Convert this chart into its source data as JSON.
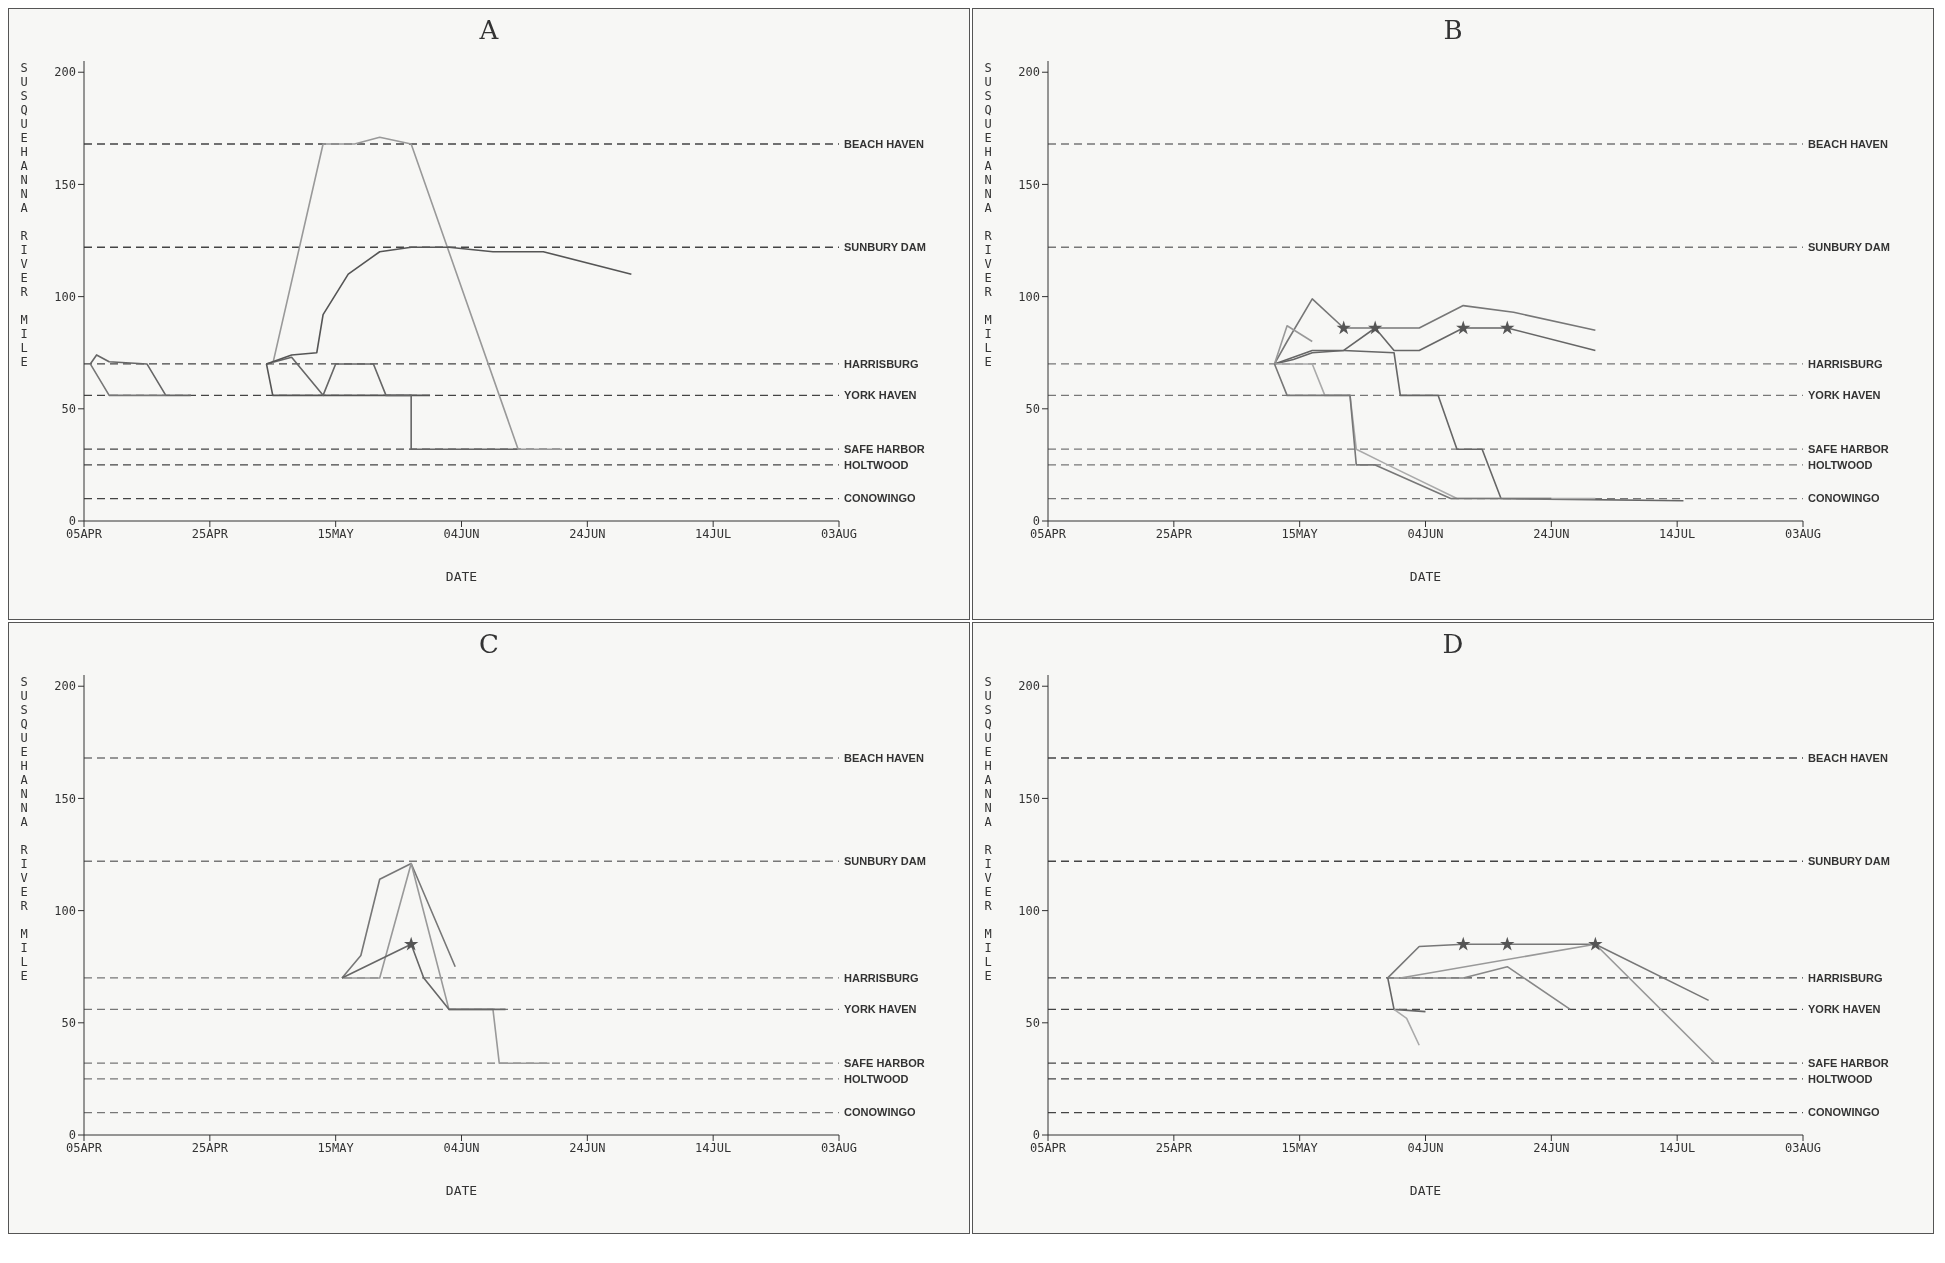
{
  "chart_data": [
    {
      "type": "line",
      "title": "A",
      "xlabel": "DATE",
      "ylabel": "SUSQUEHANNA RIVER MILE",
      "xlim": [
        "--04-05",
        "--08-03"
      ],
      "xticks": [
        {
          "value": "--04-05",
          "label": "05APR"
        },
        {
          "value": "--04-25",
          "label": "25APR"
        },
        {
          "value": "--05-15",
          "label": "15MAY"
        },
        {
          "value": "--06-04",
          "label": "04JUN"
        },
        {
          "value": "--06-24",
          "label": "24JUN"
        },
        {
          "value": "--07-14",
          "label": "14JUL"
        },
        {
          "value": "--08-03",
          "label": "03AUG"
        }
      ],
      "ylim": [
        0,
        205
      ],
      "yticks": [
        0,
        50,
        100,
        150,
        200
      ],
      "marker": "none",
      "line_style": "solid",
      "ref_lines": [
        {
          "axis": "y",
          "value": 168,
          "label": "BEACH HAVEN",
          "color": "#444444",
          "line_style": "dashed"
        },
        {
          "axis": "y",
          "value": 122,
          "label": "SUNBURY DAM",
          "color": "#444444",
          "line_style": "dashed"
        },
        {
          "axis": "y",
          "value": 70,
          "label": "HARRISBURG",
          "color": "#444444",
          "line_style": "dashed"
        },
        {
          "axis": "y",
          "value": 56,
          "label": "YORK HAVEN",
          "color": "#444444",
          "line_style": "dashed"
        },
        {
          "axis": "y",
          "value": 32,
          "label": "SAFE HARBOR",
          "color": "#444444",
          "line_style": "dashed"
        },
        {
          "axis": "y",
          "value": 25,
          "label": "HOLTWOOD",
          "color": "#444444",
          "line_style": "dashed"
        },
        {
          "axis": "y",
          "value": 10,
          "label": "CONOWINGO",
          "color": "#444444",
          "line_style": "dashed"
        }
      ],
      "series": [
        {
          "color": "#666666",
          "x": [
            "--04-06",
            "--04-07",
            "--04-09",
            "--04-15",
            "--04-18",
            "--04-22"
          ],
          "values": [
            70,
            74,
            71,
            70,
            56,
            56
          ]
        },
        {
          "color": "#777777",
          "x": [
            "--04-06",
            "--04-09",
            "--04-18"
          ],
          "values": [
            70,
            56,
            56
          ]
        },
        {
          "color": "#555555",
          "x": [
            "--05-04",
            "--05-05",
            "--05-30"
          ],
          "values": [
            70,
            56,
            56
          ]
        },
        {
          "color": "#666666",
          "x": [
            "--05-04",
            "--05-08",
            "--05-13",
            "--05-15",
            "--05-21",
            "--05-23",
            "--05-27",
            "--05-27",
            "--06-13"
          ],
          "values": [
            70,
            73,
            56,
            70,
            70,
            56,
            56,
            32,
            32
          ]
        },
        {
          "color": "#999999",
          "x": [
            "--05-05",
            "--05-13",
            "--05-18",
            "--05-22",
            "--05-27",
            "--06-13",
            "--06-20"
          ],
          "values": [
            70,
            168,
            168,
            171,
            168,
            32,
            32
          ]
        },
        {
          "color": "#555555",
          "x": [
            "--05-04",
            "--05-08",
            "--05-12",
            "--05-13",
            "--05-17",
            "--05-22",
            "--05-27",
            "--06-02",
            "--06-09",
            "--06-17",
            "--07-01"
          ],
          "values": [
            70,
            74,
            75,
            92,
            110,
            120,
            122,
            122,
            120,
            120,
            110
          ]
        }
      ]
    },
    {
      "type": "line",
      "title": "B",
      "xlabel": "DATE",
      "ylabel": "SUSQUEHANNA RIVER MILE",
      "xlim": [
        "--04-05",
        "--08-03"
      ],
      "xticks": [
        {
          "value": "--04-05",
          "label": "05APR"
        },
        {
          "value": "--04-25",
          "label": "25APR"
        },
        {
          "value": "--05-15",
          "label": "15MAY"
        },
        {
          "value": "--06-04",
          "label": "04JUN"
        },
        {
          "value": "--06-24",
          "label": "24JUN"
        },
        {
          "value": "--07-14",
          "label": "14JUL"
        },
        {
          "value": "--08-03",
          "label": "03AUG"
        }
      ],
      "ylim": [
        0,
        205
      ],
      "yticks": [
        0,
        50,
        100,
        150,
        200
      ],
      "marker": "none",
      "line_style": "solid",
      "ref_lines": [
        {
          "axis": "y",
          "value": 168,
          "label": "BEACH HAVEN",
          "color": "#777777",
          "line_style": "dashed"
        },
        {
          "axis": "y",
          "value": 122,
          "label": "SUNBURY DAM",
          "color": "#777777",
          "line_style": "dashed"
        },
        {
          "axis": "y",
          "value": 70,
          "label": "HARRISBURG",
          "color": "#777777",
          "line_style": "dashed"
        },
        {
          "axis": "y",
          "value": 56,
          "label": "YORK HAVEN",
          "color": "#777777",
          "line_style": "dashed"
        },
        {
          "axis": "y",
          "value": 32,
          "label": "SAFE HARBOR",
          "color": "#777777",
          "line_style": "dashed"
        },
        {
          "axis": "y",
          "value": 25,
          "label": "HOLTWOOD",
          "color": "#777777",
          "line_style": "dashed"
        },
        {
          "axis": "y",
          "value": 10,
          "label": "CONOWINGO",
          "color": "#777777",
          "line_style": "dashed"
        }
      ],
      "series": [
        {
          "color": "#777777",
          "x": [
            "--05-11",
            "--05-13",
            "--05-17",
            "--05-22",
            "--05-27",
            "--06-03",
            "--06-10",
            "--06-18",
            "--07-01"
          ],
          "values": [
            70,
            80,
            99,
            86,
            86,
            86,
            96,
            93,
            85
          ]
        },
        {
          "color": "#999999",
          "x": [
            "--05-11",
            "--05-13",
            "--05-17"
          ],
          "values": [
            70,
            87,
            80
          ]
        },
        {
          "color": "#666666",
          "x": [
            "--05-11",
            "--05-14",
            "--05-17",
            "--05-22",
            "--05-27",
            "--05-30",
            "--06-03",
            "--06-10",
            "--06-17",
            "--07-01"
          ],
          "values": [
            70,
            72,
            75,
            76,
            86,
            76,
            76,
            86,
            86,
            76
          ]
        },
        {
          "color": "#666666",
          "x": [
            "--05-11",
            "--05-17",
            "--05-22",
            "--05-30",
            "--05-31",
            "--06-06",
            "--06-09",
            "--06-13",
            "--06-16",
            "--07-15"
          ],
          "values": [
            70,
            76,
            76,
            75,
            56,
            56,
            32,
            32,
            10,
            9
          ]
        },
        {
          "color": "#aaaaaa",
          "x": [
            "--05-11",
            "--05-17",
            "--05-19",
            "--05-23",
            "--05-24",
            "--05-29",
            "--06-09",
            "--07-01"
          ],
          "values": [
            70,
            70,
            56,
            56,
            32,
            25,
            10,
            10
          ]
        },
        {
          "color": "#777777",
          "x": [
            "--05-11",
            "--05-13",
            "--05-23",
            "--05-24",
            "--05-27",
            "--06-08",
            "--06-24"
          ],
          "values": [
            70,
            56,
            56,
            25,
            25,
            10,
            10
          ]
        },
        {
          "type": "scatter",
          "marker": "star",
          "color": "#555555",
          "x": [
            "--05-22",
            "--05-27",
            "--06-10",
            "--06-17"
          ],
          "values": [
            86,
            86,
            86,
            86
          ]
        }
      ]
    },
    {
      "type": "line",
      "title": "C",
      "xlabel": "DATE",
      "ylabel": "SUSQUEHANNA RIVER MILE",
      "xlim": [
        "--04-05",
        "--08-03"
      ],
      "xticks": [
        {
          "value": "--04-05",
          "label": "05APR"
        },
        {
          "value": "--04-25",
          "label": "25APR"
        },
        {
          "value": "--05-15",
          "label": "15MAY"
        },
        {
          "value": "--06-04",
          "label": "04JUN"
        },
        {
          "value": "--06-24",
          "label": "24JUN"
        },
        {
          "value": "--07-14",
          "label": "14JUL"
        },
        {
          "value": "--08-03",
          "label": "03AUG"
        }
      ],
      "ylim": [
        0,
        205
      ],
      "yticks": [
        0,
        50,
        100,
        150,
        200
      ],
      "marker": "none",
      "line_style": "solid",
      "ref_lines": [
        {
          "axis": "y",
          "value": 168,
          "label": "BEACH HAVEN",
          "color": "#777777",
          "line_style": "dashed"
        },
        {
          "axis": "y",
          "value": 122,
          "label": "SUNBURY DAM",
          "color": "#777777",
          "line_style": "dashed"
        },
        {
          "axis": "y",
          "value": 70,
          "label": "HARRISBURG",
          "color": "#777777",
          "line_style": "dashed"
        },
        {
          "axis": "y",
          "value": 56,
          "label": "YORK HAVEN",
          "color": "#777777",
          "line_style": "dashed"
        },
        {
          "axis": "y",
          "value": 32,
          "label": "SAFE HARBOR",
          "color": "#777777",
          "line_style": "dashed"
        },
        {
          "axis": "y",
          "value": 25,
          "label": "HOLTWOOD",
          "color": "#777777",
          "line_style": "dashed"
        },
        {
          "axis": "y",
          "value": 10,
          "label": "CONOWINGO",
          "color": "#777777",
          "line_style": "dashed"
        }
      ],
      "series": [
        {
          "color": "#777777",
          "x": [
            "--05-16",
            "--05-19",
            "--05-22",
            "--05-27",
            "--06-03"
          ],
          "values": [
            70,
            80,
            114,
            121,
            75
          ]
        },
        {
          "color": "#999999",
          "x": [
            "--05-16",
            "--05-22",
            "--05-27",
            "--06-02",
            "--06-09",
            "--06-10",
            "--06-18"
          ],
          "values": [
            70,
            70,
            121,
            56,
            56,
            32,
            32
          ]
        },
        {
          "color": "#666666",
          "x": [
            "--05-16",
            "--05-27",
            "--05-29",
            "--06-02",
            "--06-11"
          ],
          "values": [
            70,
            85,
            70,
            56,
            56
          ]
        },
        {
          "type": "scatter",
          "marker": "star",
          "color": "#555555",
          "x": [
            "--05-27"
          ],
          "values": [
            85
          ]
        }
      ]
    },
    {
      "type": "line",
      "title": "D",
      "xlabel": "DATE",
      "ylabel": "SUSQUEHANNA RIVER MILE",
      "xlim": [
        "--04-05",
        "--08-03"
      ],
      "xticks": [
        {
          "value": "--04-05",
          "label": "05APR"
        },
        {
          "value": "--04-25",
          "label": "25APR"
        },
        {
          "value": "--05-15",
          "label": "15MAY"
        },
        {
          "value": "--06-04",
          "label": "04JUN"
        },
        {
          "value": "--06-24",
          "label": "24JUN"
        },
        {
          "value": "--07-14",
          "label": "14JUL"
        },
        {
          "value": "--08-03",
          "label": "03AUG"
        }
      ],
      "ylim": [
        0,
        205
      ],
      "yticks": [
        0,
        50,
        100,
        150,
        200
      ],
      "marker": "none",
      "line_style": "solid",
      "ref_lines": [
        {
          "axis": "y",
          "value": 168,
          "label": "BEACH HAVEN",
          "color": "#444444",
          "line_style": "dashed"
        },
        {
          "axis": "y",
          "value": 122,
          "label": "SUNBURY DAM",
          "color": "#444444",
          "line_style": "dashed"
        },
        {
          "axis": "y",
          "value": 70,
          "label": "HARRISBURG",
          "color": "#444444",
          "line_style": "dashed"
        },
        {
          "axis": "y",
          "value": 56,
          "label": "YORK HAVEN",
          "color": "#444444",
          "line_style": "dashed"
        },
        {
          "axis": "y",
          "value": 32,
          "label": "SAFE HARBOR",
          "color": "#444444",
          "line_style": "dashed"
        },
        {
          "axis": "y",
          "value": 25,
          "label": "HOLTWOOD",
          "color": "#444444",
          "line_style": "dashed"
        },
        {
          "axis": "y",
          "value": 10,
          "label": "CONOWINGO",
          "color": "#444444",
          "line_style": "dashed"
        }
      ],
      "series": [
        {
          "color": "#777777",
          "x": [
            "--05-29",
            "--06-03",
            "--06-10",
            "--06-17",
            "--07-01",
            "--07-19"
          ],
          "values": [
            70,
            84,
            85,
            85,
            85,
            60
          ]
        },
        {
          "color": "#888888",
          "x": [
            "--05-29",
            "--06-10",
            "--06-17",
            "--06-27"
          ],
          "values": [
            70,
            70,
            75,
            56
          ]
        },
        {
          "color": "#999999",
          "x": [
            "--05-31",
            "--07-01",
            "--07-20"
          ],
          "values": [
            70,
            85,
            32
          ]
        },
        {
          "color": "#666666",
          "x": [
            "--05-29",
            "--05-30",
            "--06-04"
          ],
          "values": [
            70,
            56,
            55
          ]
        },
        {
          "color": "#aaaaaa",
          "x": [
            "--05-30",
            "--06-01",
            "--06-03"
          ],
          "values": [
            56,
            52,
            40
          ]
        },
        {
          "type": "scatter",
          "marker": "star",
          "color": "#555555",
          "x": [
            "--06-10",
            "--06-17",
            "--07-01"
          ],
          "values": [
            85,
            85,
            85
          ]
        }
      ]
    }
  ]
}
